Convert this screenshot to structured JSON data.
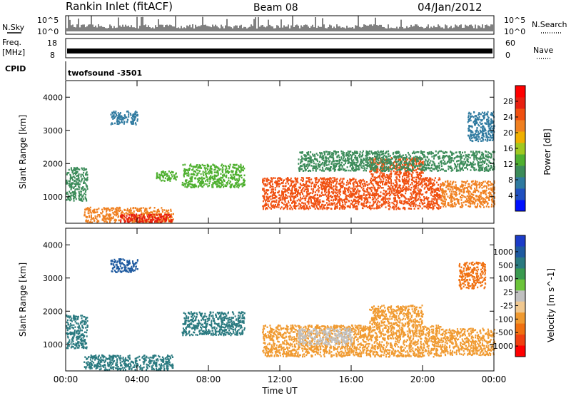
{
  "header": {
    "site": "Rankin Inlet (fitACF)",
    "beam": "Beam 08",
    "date": "04/Jan/2012"
  },
  "strips": {
    "nsky": {
      "label": "N.Sky",
      "ticks": [
        "10^5",
        "10^0"
      ]
    },
    "nsearch": {
      "label": "N.Search",
      "ticks": [
        "10^5",
        "10^0"
      ]
    },
    "freq": {
      "label_top": "Freq.",
      "label_bottom": "[MHz]",
      "ticks": [
        "18",
        "8"
      ]
    },
    "nave": {
      "label": "Nave",
      "ticks": [
        "60",
        "0"
      ]
    },
    "cpid": {
      "label": "CPID",
      "program": "twofsound",
      "id": "-3501"
    }
  },
  "chart_data": [
    {
      "type": "heatmap",
      "title": "",
      "xlabel": "Time UT",
      "ylabel": "Slant Range [km]",
      "x_ticks": [
        "00:00",
        "04:00",
        "08:00",
        "12:00",
        "16:00",
        "20:00",
        "00:00"
      ],
      "y_ticks": [
        1000,
        2000,
        3000,
        4000
      ],
      "ylim": [
        200,
        4500
      ],
      "xlim_hours": [
        0,
        24
      ],
      "colorbar": {
        "label": "Power [dB]",
        "ticks": [
          4,
          8,
          12,
          16,
          20,
          24,
          28
        ],
        "range": [
          0,
          32
        ],
        "colors": [
          "#0010ff",
          "#2050c0",
          "#2f7aa0",
          "#3c8c5a",
          "#4fb030",
          "#a0c820",
          "#f0b000",
          "#f08020",
          "#f05010",
          "#e82010",
          "#ff0000"
        ]
      },
      "regions": [
        {
          "t": [
            0.0,
            1.2
          ],
          "r": [
            900,
            1900
          ],
          "value": 10
        },
        {
          "t": [
            1.0,
            6.0
          ],
          "r": [
            250,
            700
          ],
          "value": 22
        },
        {
          "t": [
            3.0,
            6.0
          ],
          "r": [
            250,
            500
          ],
          "value": 28
        },
        {
          "t": [
            2.5,
            4.0
          ],
          "r": [
            3200,
            3600
          ],
          "value": 6
        },
        {
          "t": [
            5.0,
            6.2
          ],
          "r": [
            1500,
            1800
          ],
          "value": 12
        },
        {
          "t": [
            6.5,
            10.0
          ],
          "r": [
            1300,
            2000
          ],
          "value": 14
        },
        {
          "t": [
            11.0,
            21.0
          ],
          "r": [
            650,
            1600
          ],
          "value": 26
        },
        {
          "t": [
            17.0,
            20.0
          ],
          "r": [
            1600,
            2200
          ],
          "value": 24
        },
        {
          "t": [
            21.0,
            24.0
          ],
          "r": [
            700,
            1500
          ],
          "value": 22
        },
        {
          "t": [
            22.5,
            24.0
          ],
          "r": [
            2700,
            3600
          ],
          "value": 8
        },
        {
          "t": [
            13.0,
            24.0
          ],
          "r": [
            1800,
            2400
          ],
          "value": 10
        }
      ]
    },
    {
      "type": "heatmap",
      "title": "",
      "xlabel": "Time UT",
      "ylabel": "Slant Range [km]",
      "x_ticks": [
        "00:00",
        "04:00",
        "08:00",
        "12:00",
        "16:00",
        "20:00",
        "00:00"
      ],
      "y_ticks": [
        1000,
        2000,
        3000,
        4000
      ],
      "ylim": [
        200,
        4500
      ],
      "xlim_hours": [
        0,
        24
      ],
      "colorbar": {
        "label": "Velocity [m s^-1]",
        "ticks": [
          1000,
          500,
          100,
          25,
          -25,
          -100,
          -500,
          -1000
        ],
        "colors": [
          "#1c3cc8",
          "#1e5aa0",
          "#2a7a80",
          "#3a9a50",
          "#6cc43a",
          "#c0c0c0",
          "#f0c890",
          "#f09a30",
          "#f07010",
          "#f04010",
          "#ff0000"
        ]
      },
      "regions": [
        {
          "t": [
            0.0,
            1.2
          ],
          "r": [
            900,
            1900
          ],
          "value": 200
        },
        {
          "t": [
            1.0,
            6.0
          ],
          "r": [
            250,
            700
          ],
          "value": 150
        },
        {
          "t": [
            6.5,
            10.0
          ],
          "r": [
            1300,
            2000
          ],
          "value": 300
        },
        {
          "t": [
            2.5,
            4.0
          ],
          "r": [
            3200,
            3600
          ],
          "value": 500
        },
        {
          "t": [
            11.0,
            21.0
          ],
          "r": [
            650,
            1600
          ],
          "value": -150
        },
        {
          "t": [
            13.0,
            16.0
          ],
          "r": [
            1000,
            1500
          ],
          "value": 0
        },
        {
          "t": [
            17.0,
            20.0
          ],
          "r": [
            1600,
            2200
          ],
          "value": -100
        },
        {
          "t": [
            21.0,
            24.0
          ],
          "r": [
            700,
            1500
          ],
          "value": -200
        },
        {
          "t": [
            22.0,
            23.5
          ],
          "r": [
            2700,
            3500
          ],
          "value": -300
        }
      ]
    }
  ]
}
